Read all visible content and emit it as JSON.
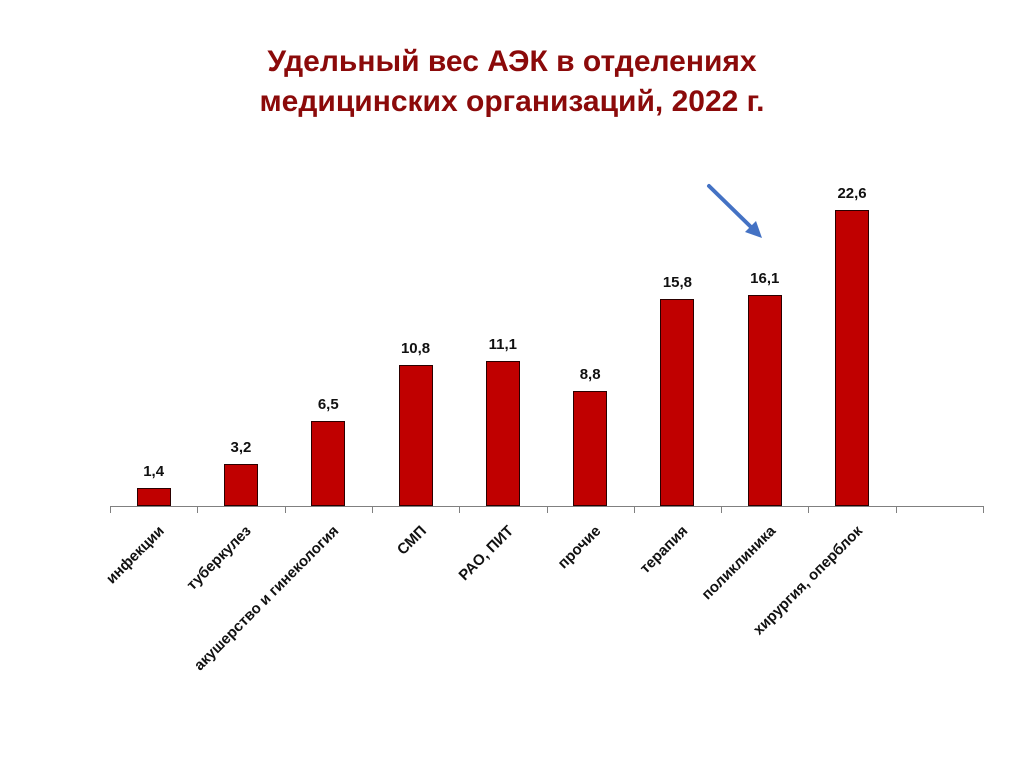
{
  "title": {
    "line1": "Удельный вес АЭК в отделениях",
    "line2": "медицинских организаций, 2022 г."
  },
  "colors": {
    "title": "#8B0A0A",
    "bar": "#C00000",
    "arrow": "#4472C4",
    "axis": "#808080"
  },
  "annotation": {
    "type": "arrow",
    "points_to": "поликлиника",
    "color": "#4472C4"
  },
  "chart_data": {
    "type": "bar",
    "title": "Удельный вес АЭК в отделениях медицинских организаций, 2022 г.",
    "xlabel": "",
    "ylabel": "",
    "categories": [
      "инфекции",
      "туберкулез",
      "акушерство и гинекология",
      "СМП",
      "РАО, ПИТ",
      "прочие",
      "терапия",
      "поликлиника",
      "хирургия, оперблок",
      ""
    ],
    "values": [
      1.4,
      3.2,
      6.5,
      10.8,
      11.1,
      8.8,
      15.8,
      16.1,
      22.6,
      null
    ],
    "value_labels": [
      "1,4",
      "3,2",
      "6,5",
      "10,8",
      "11,1",
      "8,8",
      "15,8",
      "16,1",
      "22,6",
      ""
    ],
    "ylim": [
      0,
      25
    ],
    "grid": false,
    "legend": "none",
    "y_axis_visible": false,
    "data_labels": true
  }
}
